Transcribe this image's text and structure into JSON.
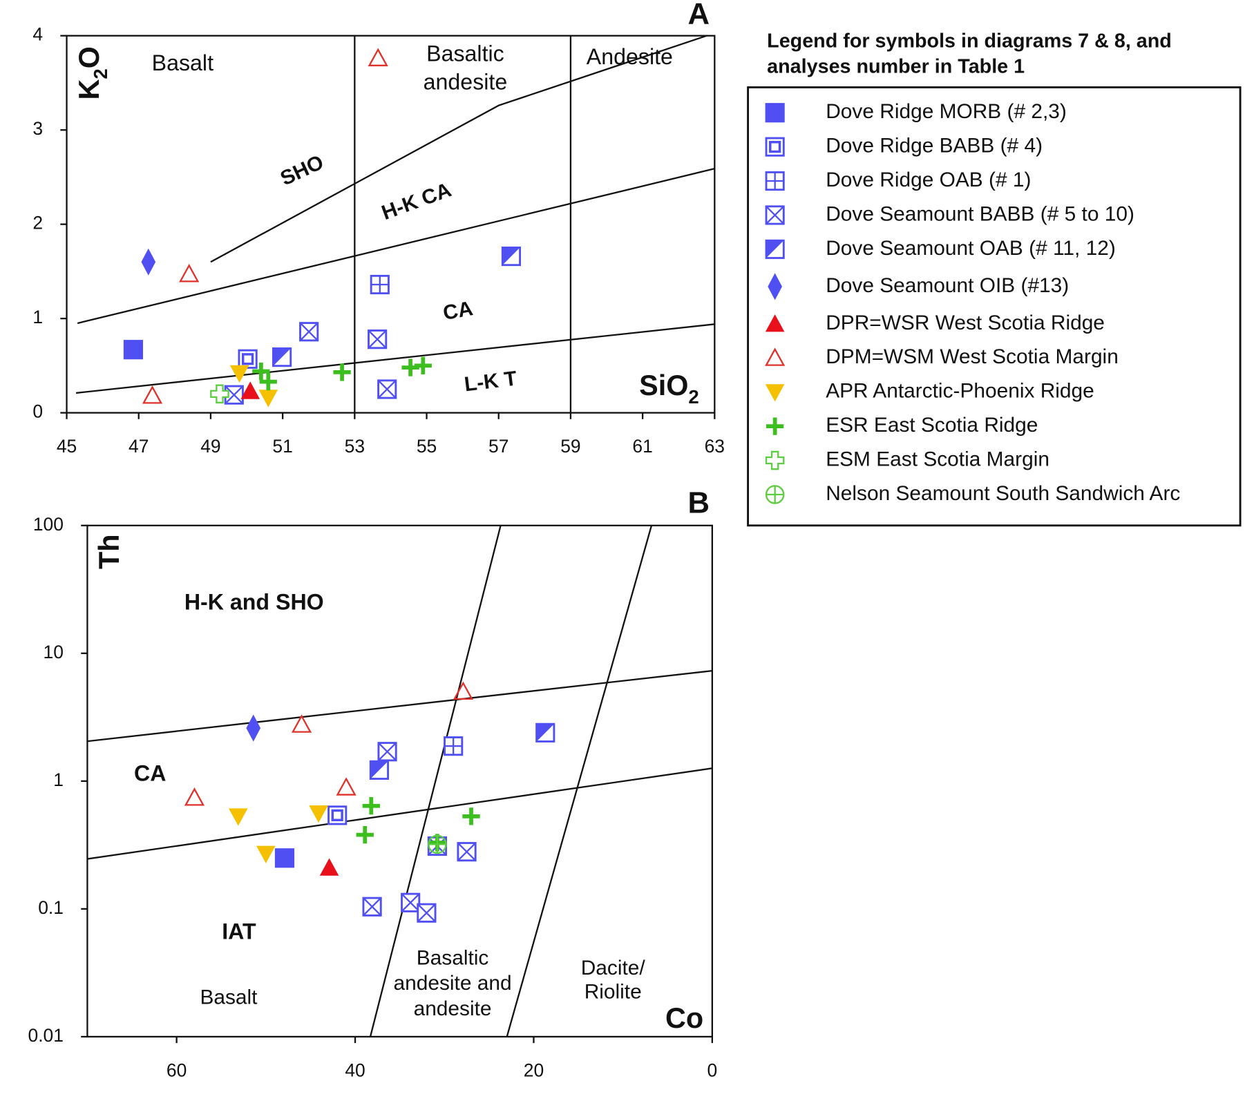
{
  "chart_data": [
    {
      "type": "scatter",
      "panel": "A",
      "ylabel": [
        "K",
        "2",
        "O"
      ],
      "xlabel": [
        "SiO",
        "2"
      ],
      "xlim": [
        45,
        63
      ],
      "ylim": [
        0,
        4
      ],
      "xticks": [
        45,
        47,
        49,
        51,
        53,
        55,
        57,
        59,
        61,
        63
      ],
      "yticks": [
        0,
        1,
        2,
        3,
        4
      ],
      "legend_title": [
        "Legend for symbols in diagrams 7 & 8, and",
        "analyses number in Table 1"
      ],
      "region_labels": [
        [
          "Basalt"
        ],
        [
          "Basaltic",
          "andesite"
        ],
        [
          "Andesite"
        ],
        [
          "SHO"
        ],
        [
          "H-K CA"
        ],
        [
          "CA"
        ],
        [
          "L-K T"
        ]
      ],
      "boundaries": [
        {
          "x": [
            45.26,
            63
          ],
          "y": [
            0.21,
            0.94
          ]
        },
        {
          "x": [
            45.3,
            63
          ],
          "y": [
            0.95,
            2.59
          ]
        },
        {
          "x": [
            49.0,
            57.0,
            62.78
          ],
          "y": [
            1.6,
            3.26,
            4.0
          ]
        },
        {
          "x": [
            53,
            53
          ],
          "y": [
            0,
            4
          ]
        },
        {
          "x": [
            59,
            59
          ],
          "y": [
            0,
            4
          ]
        }
      ],
      "series": [
        {
          "name": "Dove Ridge MORB (# 2,3)",
          "color": "#4f4ff2",
          "marker": "square",
          "x": [
            46.85
          ],
          "y": [
            0.67
          ]
        },
        {
          "name": "Dove Ridge BABB (# 4)",
          "color": "#4f4ff2",
          "marker": "square-dot",
          "x": [
            50.03
          ],
          "y": [
            0.57
          ]
        },
        {
          "name": "Dove Ridge OAB (# 1)",
          "color": "#4f4ff2",
          "marker": "square-plus",
          "x": [
            53.7
          ],
          "y": [
            1.36
          ]
        },
        {
          "name": "Dove Seamount BABB (# 5 to 10)",
          "color": "#4f4ff2",
          "marker": "square-x",
          "x": [
            51.73,
            53.63,
            53.9,
            49.65
          ],
          "y": [
            0.86,
            0.78,
            0.25,
            0.19
          ]
        },
        {
          "name": "Dove Seamount OAB (# 11, 12)",
          "color": "#4f4ff2",
          "marker": "square-half",
          "x": [
            50.98,
            57.35
          ],
          "y": [
            0.59,
            1.66
          ]
        },
        {
          "name": "Dove Seamount OIB (#13)",
          "color": "#4f4ff2",
          "marker": "diamond",
          "x": [
            47.27
          ],
          "y": [
            1.6
          ]
        },
        {
          "name": "DPR=WSR West Scotia Ridge",
          "color": "#e8101a",
          "marker": "triangle",
          "x": [
            50.1
          ],
          "y": [
            0.23
          ]
        },
        {
          "name": "DPM=WSM West Scotia Margin",
          "color": "#e0302a",
          "marker": "triangle-open",
          "x": [
            48.4,
            47.38,
            53.65
          ],
          "y": [
            1.47,
            0.18,
            3.76
          ]
        },
        {
          "name": "APR Antarctic-Phoenix Ridge",
          "color": "#f5c000",
          "marker": "triangle-down",
          "x": [
            49.8,
            50.6
          ],
          "y": [
            0.42,
            0.16
          ]
        },
        {
          "name": "ESR East Scotia Ridge",
          "color": "#3cbf1e",
          "marker": "plus",
          "x": [
            52.65,
            54.55,
            54.9,
            50.4,
            50.6
          ],
          "y": [
            0.43,
            0.48,
            0.5,
            0.44,
            0.33
          ]
        },
        {
          "name": "ESM East Scotia Margin",
          "color": "#5ccc40",
          "marker": "plus-open",
          "x": [
            49.25
          ],
          "y": [
            0.2
          ]
        },
        {
          "name": "Nelson Seamount South Sandwich Arc",
          "color": "#5ccc40",
          "marker": "circle-plus",
          "x": [],
          "y": []
        }
      ]
    },
    {
      "type": "scatter",
      "panel": "B",
      "ylabel": [
        "Th"
      ],
      "xlabel": [
        "Co"
      ],
      "log_y": true,
      "xlim": [
        70,
        0
      ],
      "ylim": [
        0.01,
        100
      ],
      "xticks": [
        60,
        40,
        20,
        0
      ],
      "yticks": [
        0.01,
        0.1,
        1,
        10,
        100
      ],
      "region_labels": [
        [
          "H-K and SHO"
        ],
        [
          "CA"
        ],
        [
          "IAT"
        ],
        [
          "Basalt"
        ],
        [
          "Basaltic",
          "andesite and",
          "andesite"
        ],
        [
          "Dacite/",
          "Riolite"
        ]
      ],
      "boundaries": [
        {
          "x": [
            70,
            0
          ],
          "y": [
            2.05,
            7.3
          ]
        },
        {
          "x": [
            70,
            0
          ],
          "y": [
            0.246,
            1.26
          ]
        },
        {
          "x": [
            38.3,
            23.7
          ],
          "y": [
            0.01,
            100
          ]
        },
        {
          "x": [
            23.0,
            6.8
          ],
          "y": [
            0.01,
            100
          ]
        }
      ],
      "series": [
        {
          "x": [
            47.9
          ],
          "y": [
            0.25
          ]
        },
        {
          "x": [
            42.0
          ],
          "y": [
            0.54
          ]
        },
        {
          "x": [
            29.0
          ],
          "y": [
            1.88
          ]
        },
        {
          "x": [
            36.4,
            38.1,
            33.8,
            32.0,
            27.5,
            30.8
          ],
          "y": [
            1.7,
            0.104,
            0.112,
            0.093,
            0.28,
            0.31
          ]
        },
        {
          "x": [
            37.3,
            18.7
          ],
          "y": [
            1.22,
            2.39
          ]
        },
        {
          "x": [
            51.4
          ],
          "y": [
            2.6
          ]
        },
        {
          "x": [
            42.9
          ],
          "y": [
            0.21
          ]
        },
        {
          "x": [
            27.9,
            46.0,
            58.0,
            41.0
          ],
          "y": [
            5.0,
            2.76,
            0.74,
            0.89
          ]
        },
        {
          "x": [
            53.1,
            50.0,
            44.1
          ],
          "y": [
            0.53,
            0.27,
            0.56
          ]
        },
        {
          "x": [
            38.2,
            38.9,
            27.0,
            30.8
          ],
          "y": [
            0.64,
            0.38,
            0.53,
            0.33
          ]
        },
        {
          "x": [],
          "y": []
        },
        {
          "x": [
            30.8
          ],
          "y": [
            0.32
          ]
        }
      ]
    }
  ]
}
